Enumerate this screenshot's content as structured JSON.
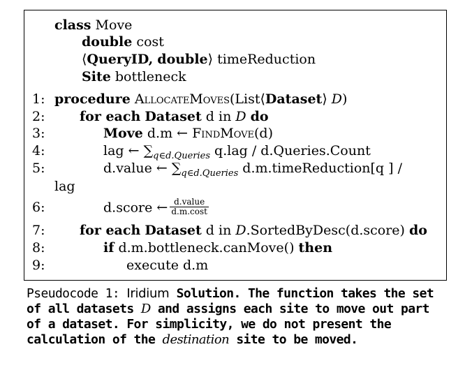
{
  "class_block": {
    "class_kw": "class",
    "class_name": "Move",
    "f1_type": "double",
    "f1_name": "cost",
    "f2_open": "⟨",
    "f2_t1": "QueryID,",
    "f2_t2": "double",
    "f2_close": "⟩",
    "f2_name": "timeReduction",
    "f3_type": "Site",
    "f3_name": "bottleneck"
  },
  "lines": {
    "l1": {
      "num": "1:",
      "kw": "procedure",
      "name": "AllocateMoves",
      "args_a": "(List⟨",
      "args_b": "Dataset",
      "args_c": "⟩ ",
      "args_d": "D",
      "args_e": ")"
    },
    "l2": {
      "num": "2:",
      "kw1": "for each",
      "kw2": "Dataset",
      "text": "d in",
      "var": "D",
      "kw3": "do"
    },
    "l3": {
      "num": "3:",
      "kw": "Move",
      "text": "d.m ←",
      "fn": "FindMove",
      "arg": "(d)"
    },
    "l4": {
      "num": "4:",
      "text_a": "lag ← ∑",
      "sub": "q∈d.Queries",
      "text_b": " q.lag / d.Queries.Count"
    },
    "l5": {
      "num": "5:",
      "text_a": "d.value ← ∑",
      "sub": "q∈d.Queries",
      "text_b": " d.m.timeReduction[q ] /",
      "wrap": "lag"
    },
    "l6": {
      "num": "6:",
      "text_a": "d.score ←",
      "frac_num": "d.value",
      "frac_den": "d.m.cost"
    },
    "l7": {
      "num": "7:",
      "kw1": "for each",
      "kw2": "Dataset",
      "text_a": "d in",
      "var": "D",
      "text_b": ".SortedByDesc(d.score)",
      "kw3": "do"
    },
    "l8": {
      "num": "8:",
      "kw1": "if",
      "text": "d.m.bottleneck.canMove()",
      "kw2": "then"
    },
    "l9": {
      "num": "9:",
      "text": "execute d.m"
    }
  },
  "caption": {
    "prefix": "Pseudocode 1:",
    "title": "Iridium",
    "bold_a": "Solution. The function takes the set of all datasets",
    "var": "D",
    "bold_b": "and assigns each site to move out part of a dataset. For simplicity, we do not present the calculation of the",
    "ital": "destination",
    "bold_c": "site to be moved."
  }
}
